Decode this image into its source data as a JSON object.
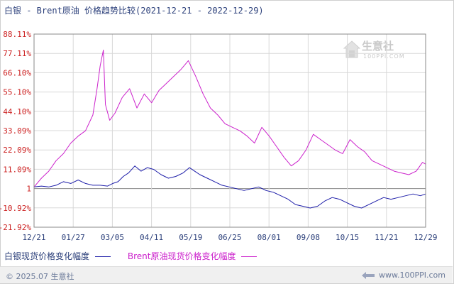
{
  "title": "白银 - Brent原油 价格趋势比较(2021-12-21 - 2022-12-29)",
  "watermark": {
    "name": "生意社",
    "url": "100PPI.COM"
  },
  "footer": {
    "left": "© 2025.07 生意社",
    "right": "www.100PPI.com"
  },
  "colors": {
    "silver": "#1c1ca8",
    "brent": "#cc22cc",
    "ytick": "#cc2222",
    "xtick": "#2b3f7a",
    "grid": "#d8d8d8"
  },
  "chart_data": {
    "type": "line",
    "x_ticks": [
      "12/21",
      "01/27",
      "03/05",
      "04/11",
      "05/19",
      "06/25",
      "08/01",
      "09/08",
      "10/15",
      "11/21",
      "12/29"
    ],
    "y_ticks": [
      "88.11%",
      "77.11%",
      "66.10%",
      "55.10%",
      "44.10%",
      "33.09%",
      "22.09%",
      "11.09%",
      "1",
      "-10.92%",
      "-21.92%"
    ],
    "ylim": [
      -21.92,
      88.11
    ],
    "xlim": [
      0,
      373
    ],
    "grid": true,
    "legend_position": "bottom-left",
    "series": [
      {
        "name": "白银现货价格变化幅度",
        "color": "#1c1ca8",
        "points": [
          [
            0,
            1
          ],
          [
            7,
            1.5
          ],
          [
            14,
            1
          ],
          [
            21,
            2
          ],
          [
            28,
            4
          ],
          [
            35,
            3
          ],
          [
            42,
            5
          ],
          [
            49,
            3
          ],
          [
            56,
            2
          ],
          [
            63,
            2
          ],
          [
            70,
            1.5
          ],
          [
            75,
            3
          ],
          [
            80,
            4
          ],
          [
            85,
            7
          ],
          [
            90,
            9
          ],
          [
            96,
            13
          ],
          [
            102,
            10
          ],
          [
            108,
            12
          ],
          [
            114,
            11
          ],
          [
            121,
            8
          ],
          [
            128,
            6
          ],
          [
            135,
            7
          ],
          [
            142,
            9
          ],
          [
            148,
            12
          ],
          [
            153,
            10
          ],
          [
            158,
            8
          ],
          [
            165,
            6
          ],
          [
            172,
            4
          ],
          [
            179,
            2
          ],
          [
            186,
            1
          ],
          [
            193,
            0
          ],
          [
            200,
            -1
          ],
          [
            207,
            0
          ],
          [
            214,
            1
          ],
          [
            221,
            -1
          ],
          [
            228,
            -2
          ],
          [
            235,
            -4
          ],
          [
            242,
            -6
          ],
          [
            249,
            -9
          ],
          [
            256,
            -10
          ],
          [
            263,
            -11
          ],
          [
            270,
            -10
          ],
          [
            277,
            -7
          ],
          [
            284,
            -5
          ],
          [
            291,
            -6
          ],
          [
            298,
            -8
          ],
          [
            305,
            -10
          ],
          [
            312,
            -11
          ],
          [
            319,
            -9
          ],
          [
            326,
            -7
          ],
          [
            333,
            -5
          ],
          [
            340,
            -6
          ],
          [
            347,
            -5
          ],
          [
            354,
            -4
          ],
          [
            361,
            -3
          ],
          [
            368,
            -4
          ],
          [
            373,
            -3
          ]
        ]
      },
      {
        "name": "Brent原油现货价格变化幅度",
        "color": "#cc22cc",
        "points": [
          [
            0,
            1
          ],
          [
            7,
            6
          ],
          [
            14,
            10
          ],
          [
            21,
            16
          ],
          [
            28,
            20
          ],
          [
            35,
            26
          ],
          [
            42,
            30
          ],
          [
            49,
            33
          ],
          [
            56,
            42
          ],
          [
            60,
            57
          ],
          [
            63,
            70
          ],
          [
            66,
            79
          ],
          [
            68,
            48
          ],
          [
            72,
            39
          ],
          [
            77,
            43
          ],
          [
            84,
            52
          ],
          [
            91,
            57
          ],
          [
            98,
            46
          ],
          [
            105,
            54
          ],
          [
            112,
            49
          ],
          [
            119,
            56
          ],
          [
            126,
            60
          ],
          [
            133,
            64
          ],
          [
            140,
            68
          ],
          [
            147,
            73
          ],
          [
            154,
            64
          ],
          [
            161,
            54
          ],
          [
            168,
            46
          ],
          [
            175,
            42
          ],
          [
            182,
            37
          ],
          [
            189,
            35
          ],
          [
            196,
            33
          ],
          [
            203,
            30
          ],
          [
            210,
            26
          ],
          [
            217,
            35
          ],
          [
            224,
            30
          ],
          [
            231,
            24
          ],
          [
            238,
            18
          ],
          [
            245,
            13
          ],
          [
            252,
            16
          ],
          [
            259,
            22
          ],
          [
            266,
            31
          ],
          [
            273,
            28
          ],
          [
            280,
            25
          ],
          [
            287,
            22
          ],
          [
            294,
            20
          ],
          [
            301,
            28
          ],
          [
            308,
            24
          ],
          [
            315,
            21
          ],
          [
            322,
            16
          ],
          [
            329,
            14
          ],
          [
            336,
            12
          ],
          [
            343,
            10
          ],
          [
            350,
            9
          ],
          [
            357,
            8
          ],
          [
            364,
            10
          ],
          [
            370,
            15
          ],
          [
            373,
            14
          ]
        ]
      }
    ]
  }
}
